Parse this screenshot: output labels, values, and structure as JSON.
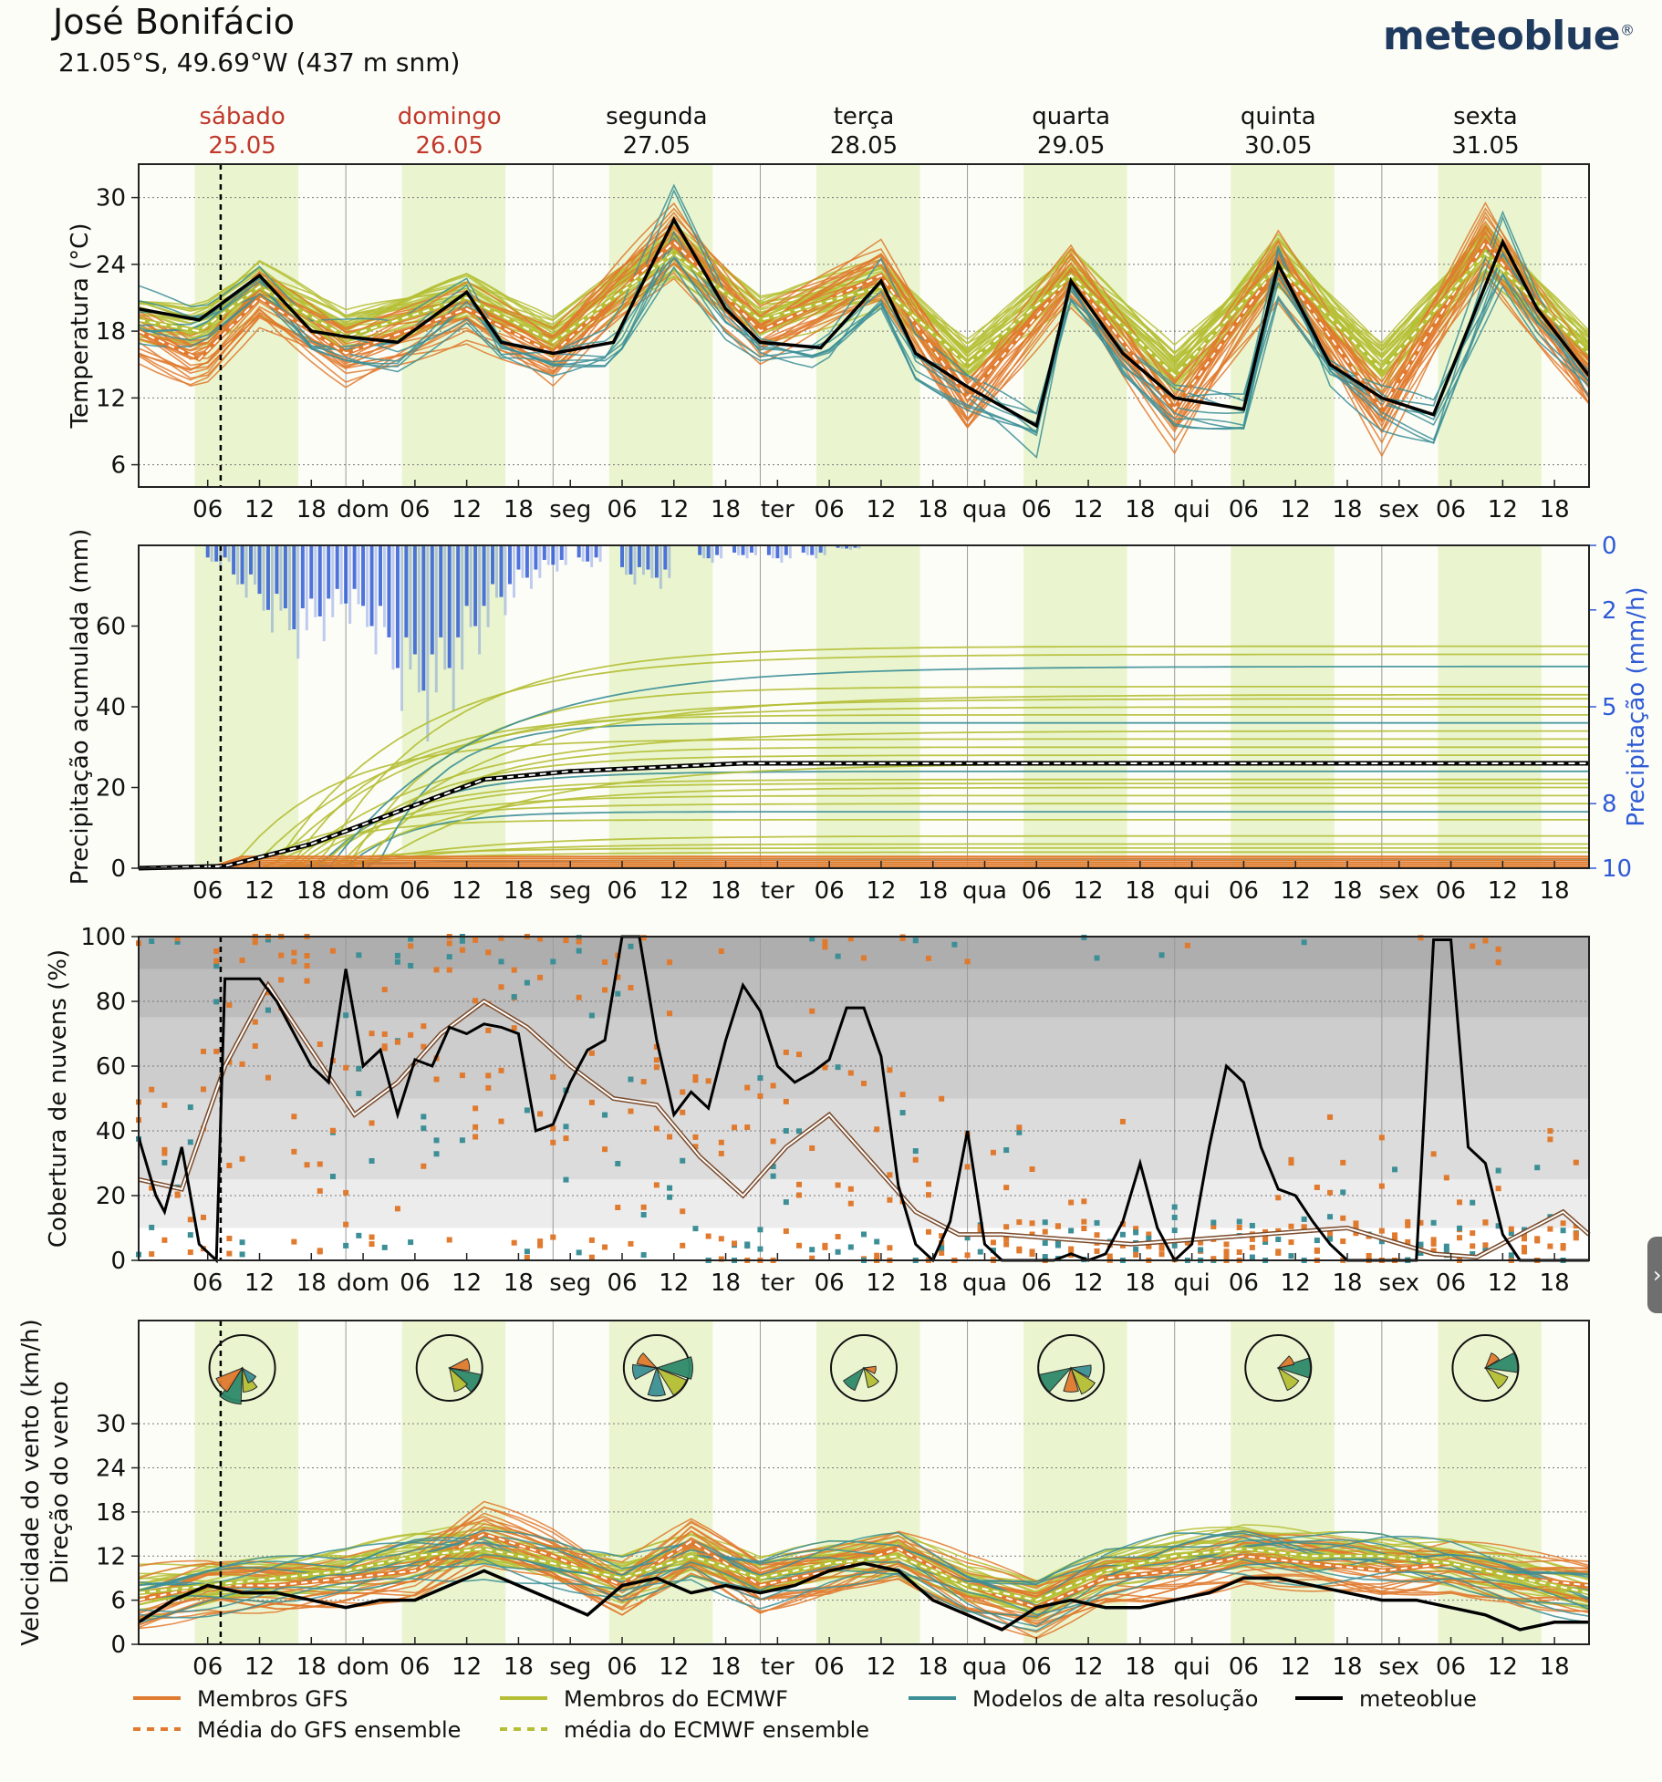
{
  "header": {
    "title": "José Bonifácio",
    "coords": "21.05°S, 49.69°W (437 m snm)",
    "logo": "meteoblue",
    "logo_mark": "®"
  },
  "colors": {
    "gfs": "#e07a2e",
    "ecmwf": "#b5bf35",
    "hires": "#3c8f96",
    "meteoblue": "#000000",
    "daylight": "#eaf5d0",
    "precip": "#2f5bd6",
    "weekend": "#c0392b",
    "precip_axis": "#2f5bd6"
  },
  "days": [
    {
      "name": "sábado",
      "date": "25.05",
      "weekend": true
    },
    {
      "name": "domingo",
      "date": "26.05",
      "weekend": true
    },
    {
      "name": "segunda",
      "date": "27.05",
      "weekend": false
    },
    {
      "name": "terça",
      "date": "28.05",
      "weekend": false
    },
    {
      "name": "quarta",
      "date": "29.05",
      "weekend": false
    },
    {
      "name": "quinta",
      "date": "30.05",
      "weekend": false
    },
    {
      "name": "sexta",
      "date": "31.05",
      "weekend": false
    }
  ],
  "x_tick_labels": [
    "06",
    "12",
    "18",
    "dom",
    "06",
    "12",
    "18",
    "seg",
    "06",
    "12",
    "18",
    "ter",
    "06",
    "12",
    "18",
    "qua",
    "06",
    "12",
    "18",
    "qui",
    "06",
    "12",
    "18",
    "sex",
    "06",
    "12",
    "18"
  ],
  "chart_data": [
    {
      "type": "line",
      "id": "temperature",
      "ylabel": "Temperatura (°C)",
      "yticks": [
        6,
        12,
        18,
        24,
        30
      ],
      "ylim": [
        4,
        33
      ],
      "x_unit": "hours since 25.05 00:00",
      "meteoblue": {
        "x": [
          0,
          7,
          14,
          20,
          24,
          30,
          38,
          42,
          48,
          55,
          62,
          68,
          72,
          79,
          86,
          90,
          96,
          104,
          108,
          114,
          120,
          128,
          132,
          138,
          144,
          150,
          158,
          162,
          168
        ],
        "y": [
          20,
          19,
          23,
          18,
          17.5,
          17,
          21.5,
          17,
          16,
          17,
          28,
          20,
          17,
          16.5,
          22.5,
          16,
          13,
          9.5,
          22.5,
          16,
          12,
          11,
          24,
          15,
          12,
          10.5,
          26,
          20,
          14
        ]
      },
      "gfs_mean": {
        "x": [
          0,
          7,
          14,
          24,
          38,
          48,
          62,
          72,
          86,
          96,
          108,
          120,
          132,
          144,
          156,
          168
        ],
        "y": [
          18,
          15.5,
          21,
          16,
          20,
          16,
          26,
          18,
          23,
          12,
          23,
          11,
          24,
          11,
          26,
          14
        ]
      },
      "ecmwf_mean": {
        "x": [
          0,
          7,
          14,
          24,
          38,
          48,
          62,
          72,
          86,
          96,
          108,
          120,
          132,
          144,
          156,
          168
        ],
        "y": [
          19,
          18,
          22,
          17.5,
          21,
          17,
          25,
          19,
          22,
          15,
          23,
          14,
          24,
          14.5,
          25,
          16
        ]
      }
    },
    {
      "type": "line",
      "id": "precipitation",
      "ylabel": "Precipitação acumulada (mm)",
      "y2label": "Precipitação (mm/h)",
      "yticks": [
        0,
        20,
        40,
        60
      ],
      "ylim": [
        0,
        80
      ],
      "y2ticks": [
        0,
        2,
        5,
        8,
        10
      ],
      "y2lim": [
        10,
        0
      ],
      "meteoblue_mean": {
        "x": [
          0,
          10,
          20,
          30,
          40,
          50,
          60,
          70,
          168
        ],
        "y": [
          0,
          0.5,
          6,
          14,
          22,
          24,
          25,
          26,
          26
        ]
      },
      "ensemble_final_totals": [
        2,
        4,
        5,
        6,
        8,
        12,
        14,
        16,
        18,
        20,
        21,
        22,
        24,
        26,
        28,
        30,
        32,
        34,
        36,
        38,
        40,
        42,
        43,
        45,
        50,
        53,
        55
      ],
      "hourly_rate_bars": [
        {
          "x": 9,
          "y": 0.5
        },
        {
          "x": 12,
          "y": 1.2
        },
        {
          "x": 15,
          "y": 2.0
        },
        {
          "x": 18,
          "y": 2.6
        },
        {
          "x": 21,
          "y": 2.2
        },
        {
          "x": 24,
          "y": 1.8
        },
        {
          "x": 27,
          "y": 2.5
        },
        {
          "x": 30,
          "y": 3.8
        },
        {
          "x": 33,
          "y": 4.5
        },
        {
          "x": 36,
          "y": 3.8
        },
        {
          "x": 39,
          "y": 2.5
        },
        {
          "x": 42,
          "y": 1.6
        },
        {
          "x": 45,
          "y": 1.0
        },
        {
          "x": 48,
          "y": 0.6
        },
        {
          "x": 52,
          "y": 0.5
        },
        {
          "x": 57,
          "y": 0.9
        },
        {
          "x": 60,
          "y": 1.0
        },
        {
          "x": 66,
          "y": 0.4
        },
        {
          "x": 70,
          "y": 0.3
        },
        {
          "x": 74,
          "y": 0.4
        },
        {
          "x": 78,
          "y": 0.3
        },
        {
          "x": 82,
          "y": 0.1
        }
      ]
    },
    {
      "type": "line",
      "id": "cloud_cover",
      "ylabel": "Cobertura de nuvens (%)",
      "yticks": [
        0,
        20,
        40,
        60,
        80,
        100
      ],
      "ylim": [
        0,
        100
      ],
      "meteoblue": {
        "x": [
          0,
          2,
          3,
          5,
          7,
          9,
          10,
          12,
          14,
          16,
          18,
          20,
          22,
          24,
          26,
          28,
          30,
          32,
          34,
          36,
          38,
          40,
          42,
          44,
          46,
          48,
          50,
          52,
          54,
          56,
          58,
          60,
          62,
          64,
          66,
          68,
          70,
          72,
          74,
          76,
          78,
          80,
          82,
          84,
          86,
          88,
          90,
          92,
          94,
          96,
          98,
          100,
          102,
          104,
          106,
          108,
          110,
          112,
          114,
          116,
          118,
          120,
          122,
          124,
          126,
          128,
          130,
          132,
          134,
          136,
          138,
          140,
          142,
          144,
          146,
          148,
          150,
          152,
          154,
          156,
          158,
          160,
          162,
          164,
          166,
          168
        ],
        "y": [
          38,
          20,
          15,
          35,
          5,
          0,
          87,
          87,
          87,
          80,
          70,
          60,
          55,
          90,
          60,
          65,
          45,
          62,
          60,
          72,
          70,
          73,
          72,
          70,
          40,
          42,
          55,
          65,
          68,
          100,
          100,
          68,
          45,
          52,
          47,
          68,
          85,
          77,
          60,
          55,
          58,
          62,
          78,
          78,
          63,
          23,
          5,
          0,
          12,
          40,
          5,
          0,
          0,
          0,
          0,
          2,
          0,
          2,
          12,
          30,
          10,
          0,
          5,
          35,
          60,
          55,
          35,
          22,
          20,
          12,
          5,
          0,
          0,
          0,
          0,
          0,
          99,
          99,
          35,
          30,
          8,
          0,
          0,
          0,
          0,
          0
        ]
      },
      "ensemble_mean": {
        "x": [
          0,
          5,
          10,
          15,
          20,
          25,
          30,
          35,
          40,
          45,
          50,
          55,
          60,
          65,
          70,
          75,
          80,
          85,
          90,
          95,
          100,
          105,
          110,
          115,
          120,
          125,
          130,
          135,
          140,
          145,
          150,
          155,
          160,
          165,
          168
        ],
        "y": [
          25,
          22,
          60,
          85,
          65,
          45,
          55,
          70,
          80,
          72,
          60,
          50,
          48,
          32,
          20,
          35,
          45,
          30,
          15,
          8,
          8,
          7,
          6,
          5,
          6,
          7,
          8,
          9,
          10,
          6,
          2,
          1,
          8,
          15,
          8
        ]
      }
    },
    {
      "type": "line",
      "id": "wind",
      "ylabel": "Velocidade do vento (km/h)",
      "ylabel2": "Direção do vento",
      "yticks": [
        0,
        6,
        12,
        18,
        24,
        30
      ],
      "ylim": [
        0,
        32
      ],
      "meteoblue": {
        "x": [
          0,
          4,
          8,
          12,
          16,
          20,
          24,
          28,
          32,
          36,
          40,
          44,
          48,
          52,
          56,
          60,
          64,
          68,
          72,
          76,
          80,
          84,
          88,
          92,
          96,
          100,
          104,
          108,
          112,
          116,
          120,
          124,
          128,
          132,
          136,
          140,
          144,
          148,
          152,
          156,
          160,
          164,
          168
        ],
        "y": [
          3,
          6,
          8,
          7,
          7,
          6,
          5,
          6,
          6,
          8,
          10,
          8,
          6,
          4,
          8,
          9,
          7,
          8,
          7,
          8,
          10,
          11,
          10,
          6,
          4,
          2,
          5,
          6,
          5,
          5,
          6,
          7,
          9,
          9,
          8,
          7,
          6,
          6,
          5,
          4,
          2,
          3,
          3
        ]
      },
      "gfs_mean": {
        "x": [
          0,
          8,
          16,
          24,
          32,
          40,
          48,
          56,
          64,
          72,
          80,
          88,
          96,
          104,
          112,
          120,
          128,
          136,
          144,
          152,
          160,
          168
        ],
        "y": [
          6,
          8,
          8,
          9,
          10,
          15,
          12,
          8,
          14,
          8,
          10,
          13,
          8,
          5,
          9,
          10,
          12,
          11,
          10,
          11,
          9,
          8
        ]
      },
      "ecmwf_mean": {
        "x": [
          0,
          8,
          16,
          24,
          32,
          40,
          48,
          56,
          64,
          72,
          80,
          88,
          96,
          104,
          112,
          120,
          128,
          136,
          144,
          152,
          160,
          168
        ],
        "y": [
          7,
          8,
          9,
          10,
          12,
          13,
          11,
          9,
          12,
          9,
          11,
          12,
          8,
          6,
          10,
          12,
          13,
          12,
          12,
          11,
          9,
          7
        ]
      },
      "wind_roses": [
        {
          "day": "sábado",
          "dirs_deg": [
            200,
            160,
            230,
            140
          ],
          "strength": [
            0.9,
            0.6,
            0.7,
            0.4
          ]
        },
        {
          "day": "domingo",
          "dirs_deg": [
            120,
            150,
            80
          ],
          "strength": [
            0.8,
            0.6,
            0.5
          ]
        },
        {
          "day": "segunda",
          "dirs_deg": [
            90,
            130,
            300,
            260,
            180
          ],
          "strength": [
            0.9,
            0.8,
            0.5,
            0.6,
            0.7
          ]
        },
        {
          "day": "terça",
          "dirs_deg": [
            220,
            150,
            100
          ],
          "strength": [
            0.6,
            0.5,
            0.3
          ]
        },
        {
          "day": "quarta",
          "dirs_deg": [
            240,
            140,
            180,
            100
          ],
          "strength": [
            0.8,
            0.7,
            0.6,
            0.5
          ]
        },
        {
          "day": "quinta",
          "dirs_deg": [
            90,
            140,
            60
          ],
          "strength": [
            0.8,
            0.6,
            0.4
          ]
        },
        {
          "day": "sexta",
          "dirs_deg": [
            80,
            130,
            40
          ],
          "strength": [
            0.8,
            0.6,
            0.4
          ]
        }
      ]
    }
  ],
  "legend": [
    {
      "label": "Membros GFS",
      "color": "#e07a2e",
      "style": "solid"
    },
    {
      "label": "Membros do ECMWF",
      "color": "#b5bf35",
      "style": "solid"
    },
    {
      "label": "Modelos de alta resolução",
      "color": "#3c8f96",
      "style": "solid"
    },
    {
      "label": "meteoblue",
      "color": "#000000",
      "style": "solid"
    },
    {
      "label": "Média do GFS ensemble",
      "color": "#e07a2e",
      "style": "dashed"
    },
    {
      "label": "média do ECMWF ensemble",
      "color": "#b5bf35",
      "style": "dashed"
    }
  ]
}
